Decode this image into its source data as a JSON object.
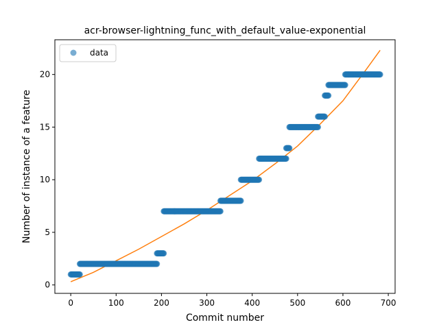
{
  "chart_data": {
    "type": "scatter",
    "title": "acr-browser-lightning_func_with_default_value-exponential",
    "xlabel": "Commit number",
    "ylabel": "Number of instance of a feature",
    "xlim": [
      -35,
      715
    ],
    "ylim": [
      -0.8,
      23.3
    ],
    "xticks": [
      0,
      100,
      200,
      300,
      400,
      500,
      600,
      700
    ],
    "yticks": [
      0,
      5,
      10,
      15,
      20
    ],
    "grid": false,
    "legend": {
      "position": "top-left",
      "entries": [
        "data"
      ]
    },
    "colors": {
      "data": "#1f77b4",
      "fit": "#ff7f0e"
    },
    "series": [
      {
        "name": "data",
        "kind": "scatter",
        "segments": [
          {
            "x_start": 0,
            "x_end": 20,
            "y": 1
          },
          {
            "x_start": 20,
            "x_end": 190,
            "y": 2
          },
          {
            "x_start": 190,
            "x_end": 205,
            "y": 3
          },
          {
            "x_start": 205,
            "x_end": 330,
            "y": 7
          },
          {
            "x_start": 330,
            "x_end": 375,
            "y": 8
          },
          {
            "x_start": 375,
            "x_end": 415,
            "y": 10
          },
          {
            "x_start": 415,
            "x_end": 475,
            "y": 12
          },
          {
            "x_start": 475,
            "x_end": 482,
            "y": 13
          },
          {
            "x_start": 482,
            "x_end": 545,
            "y": 15
          },
          {
            "x_start": 545,
            "x_end": 560,
            "y": 16
          },
          {
            "x_start": 560,
            "x_end": 568,
            "y": 18
          },
          {
            "x_start": 568,
            "x_end": 605,
            "y": 19
          },
          {
            "x_start": 605,
            "x_end": 682,
            "y": 20
          }
        ]
      },
      {
        "kind": "line",
        "x": [
          0,
          50,
          100,
          150,
          200,
          250,
          300,
          350,
          400,
          450,
          500,
          550,
          600,
          650,
          682
        ],
        "y": [
          0.3,
          1.2,
          2.3,
          3.4,
          4.6,
          5.8,
          7.1,
          8.5,
          9.9,
          11.5,
          13.2,
          15.3,
          17.5,
          20.4,
          22.3
        ]
      }
    ]
  }
}
